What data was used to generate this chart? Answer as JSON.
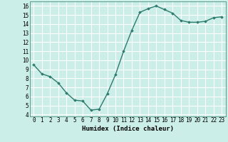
{
  "x": [
    0,
    1,
    2,
    3,
    4,
    5,
    6,
    7,
    8,
    9,
    10,
    11,
    12,
    13,
    14,
    15,
    16,
    17,
    18,
    19,
    20,
    21,
    22,
    23
  ],
  "y": [
    9.5,
    8.5,
    8.2,
    7.5,
    6.4,
    5.6,
    5.5,
    4.5,
    4.6,
    6.3,
    8.4,
    11.0,
    13.3,
    15.3,
    15.7,
    16.0,
    15.6,
    15.2,
    14.4,
    14.2,
    14.2,
    14.3,
    14.7,
    14.8
  ],
  "line_color": "#2d7a6e",
  "marker": "D",
  "marker_size": 1.8,
  "bg_color": "#cceee8",
  "grid_color": "#ffffff",
  "xlabel": "Humidex (Indice chaleur)",
  "ylim": [
    3.8,
    16.5
  ],
  "xlim": [
    -0.5,
    23.5
  ],
  "yticks": [
    4,
    5,
    6,
    7,
    8,
    9,
    10,
    11,
    12,
    13,
    14,
    15,
    16
  ],
  "xticks": [
    0,
    1,
    2,
    3,
    4,
    5,
    6,
    7,
    8,
    9,
    10,
    11,
    12,
    13,
    14,
    15,
    16,
    17,
    18,
    19,
    20,
    21,
    22,
    23
  ],
  "xlabel_fontsize": 6.5,
  "tick_fontsize": 5.5,
  "line_width": 1.0
}
